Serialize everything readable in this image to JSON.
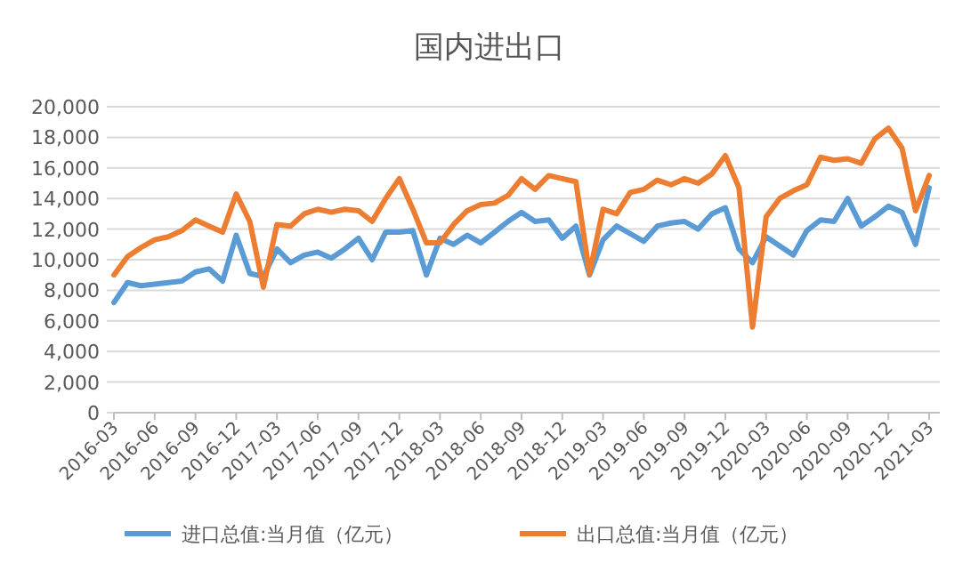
{
  "chart_data": {
    "type": "line",
    "title": "国内进出口",
    "categories": [
      "2016-03",
      null,
      null,
      "2016-06",
      null,
      null,
      "2016-09",
      null,
      null,
      "2016-12",
      null,
      null,
      "2017-03",
      null,
      null,
      "2017-06",
      null,
      null,
      "2017-09",
      null,
      null,
      "2017-12",
      null,
      null,
      "2018-03",
      null,
      null,
      "2018-06",
      null,
      null,
      "2018-09",
      null,
      null,
      "2018-12",
      null,
      null,
      "2019-03",
      null,
      null,
      "2019-06",
      null,
      null,
      "2019-09",
      null,
      null,
      "2019-12",
      null,
      null,
      "2020-03",
      null,
      null,
      "2020-06",
      null,
      null,
      "2020-09",
      null,
      null,
      "2020-12",
      null,
      null,
      "2021-03"
    ],
    "series": [
      {
        "name": "进口总值:当月值（亿元）",
        "color": "#5b9bd5",
        "values": [
          7200,
          8500,
          8300,
          8400,
          8500,
          8600,
          9200,
          9400,
          8600,
          11600,
          9100,
          8900,
          10700,
          9800,
          10300,
          10500,
          10100,
          10700,
          11400,
          10000,
          11800,
          11800,
          11900,
          9000,
          11400,
          11000,
          11600,
          11100,
          11800,
          12500,
          13100,
          12500,
          12600,
          11400,
          12200,
          9000,
          11300,
          12200,
          11700,
          11200,
          12200,
          12400,
          12500,
          12000,
          13000,
          13400,
          10700,
          9800,
          11500,
          10900,
          10300,
          11900,
          12600,
          12500,
          14000,
          12200,
          12800,
          13500,
          13100,
          11000,
          14700
        ]
      },
      {
        "name": "出口总值:当月值（亿元）",
        "color": "#ed7d31",
        "values": [
          9000,
          10200,
          10800,
          11300,
          11500,
          11900,
          12600,
          12200,
          11800,
          14300,
          12500,
          8200,
          12300,
          12200,
          13000,
          13300,
          13100,
          13300,
          13200,
          12500,
          14000,
          15300,
          13300,
          11100,
          11100,
          12300,
          13200,
          13600,
          13700,
          14200,
          15300,
          14600,
          15500,
          15300,
          15100,
          9100,
          13300,
          13000,
          14400,
          14600,
          15200,
          14900,
          15300,
          15000,
          15600,
          16800,
          14700,
          5600,
          12800,
          14000,
          14500,
          14900,
          16700,
          16500,
          16600,
          16300,
          17900,
          18600,
          17300,
          13200,
          15500
        ]
      }
    ],
    "ylim": [
      0,
      20000
    ],
    "yticks": [
      0,
      {
        "value": 2000,
        "label": "2,000"
      },
      {
        "value": 4000,
        "label": "4,000"
      },
      {
        "value": 6000,
        "label": "6,000"
      },
      {
        "value": 8000,
        "label": "8,000"
      },
      {
        "value": 10000,
        "label": "10,000"
      },
      {
        "value": 12000,
        "label": "12,000"
      },
      {
        "value": 14000,
        "label": "14,000"
      },
      {
        "value": 16000,
        "label": "16,000"
      },
      {
        "value": 18000,
        "label": "18,000"
      },
      {
        "value": 20000,
        "label": "20,000"
      }
    ],
    "grid": "y",
    "legend": "bottom",
    "line_style": "solid"
  }
}
